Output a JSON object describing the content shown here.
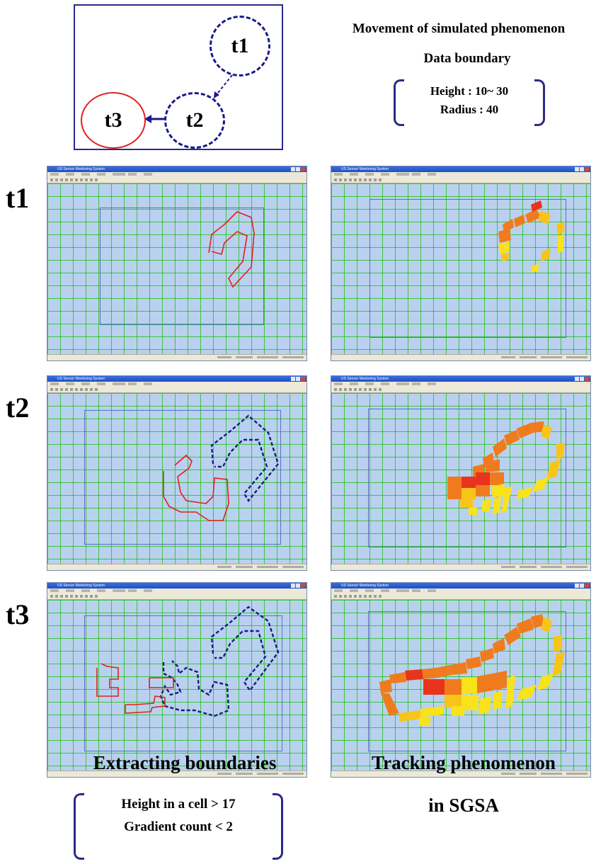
{
  "diagram": {
    "nodes": [
      "t1",
      "t2",
      "t3"
    ],
    "title": "Movement of simulated phenomenon",
    "boundary_title": "Data boundary",
    "height_range": "Height : 10~ 30",
    "radius": "Radius : 40"
  },
  "rows": [
    {
      "label": "t1"
    },
    {
      "label": "t2"
    },
    {
      "label": "t3"
    }
  ],
  "windows": {
    "title_text": "US Sensor Monitoring System",
    "menu_count": 7
  },
  "captions": {
    "left": "Extracting boundaries",
    "criteria": [
      "Height in a cell > 17",
      "Gradient count  < 2"
    ],
    "right_line1": "Tracking phenomenon",
    "right_line2": "in SGSA"
  },
  "colors": {
    "grid": "#3ec43e",
    "canvas": "#b9d1ef",
    "current_boundary": "#e02020",
    "previous_boundary": "#1a1a8a",
    "track_orange": "#f07b1e",
    "track_yellow": "#f8e21a",
    "track_red": "#e8341c"
  }
}
